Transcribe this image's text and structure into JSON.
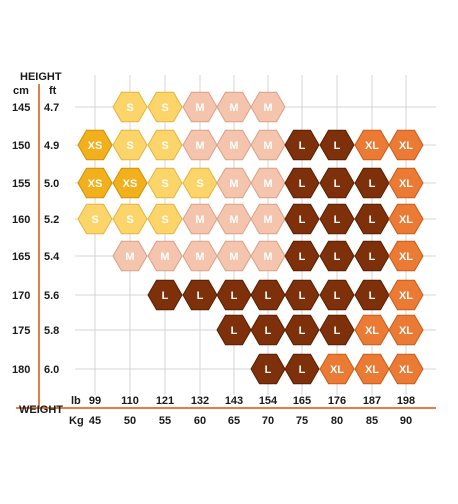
{
  "chart_data": {
    "type": "table",
    "title": "",
    "y_axis": {
      "title": "HEIGHT",
      "unit_cm": "cm",
      "unit_ft": "ft",
      "cm": [
        "145",
        "150",
        "155",
        "160",
        "165",
        "170",
        "175",
        "180"
      ],
      "ft": [
        "4.7",
        "4.9",
        "5.0",
        "5.2",
        "5.4",
        "5.6",
        "5.8",
        "6.0"
      ]
    },
    "x_axis": {
      "title": "WEIGHT",
      "unit_lb": "lb",
      "unit_kg": "Kg",
      "lb": [
        "99",
        "110",
        "121",
        "132",
        "143",
        "154",
        "165",
        "176",
        "187",
        "198"
      ],
      "kg": [
        "45",
        "50",
        "55",
        "60",
        "65",
        "70",
        "75",
        "80",
        "85",
        "90"
      ]
    },
    "grid": true,
    "cells": [
      [
        "",
        "S",
        "S",
        "M",
        "M",
        "M",
        "",
        "",
        "",
        ""
      ],
      [
        "XS",
        "S",
        "S",
        "M",
        "M",
        "M",
        "L",
        "L",
        "XL",
        "XL"
      ],
      [
        "XS",
        "XS",
        "S",
        "S",
        "M",
        "M",
        "L",
        "L",
        "L",
        "XL"
      ],
      [
        "S",
        "S",
        "S",
        "M",
        "M",
        "M",
        "L",
        "L",
        "L",
        "XL"
      ],
      [
        "",
        "M",
        "M",
        "M",
        "M",
        "M",
        "L",
        "L",
        "L",
        "XL"
      ],
      [
        "",
        "",
        "L",
        "L",
        "L",
        "L",
        "L",
        "L",
        "L",
        "XL"
      ],
      [
        "",
        "",
        "",
        "",
        "L",
        "L",
        "L",
        "L",
        "XL",
        "XL"
      ],
      [
        "",
        "",
        "",
        "",
        "",
        "L",
        "L",
        "XL",
        "XL",
        "XL"
      ]
    ],
    "size_colors": {
      "XS": "#f2b01c",
      "S": "#fbd46a",
      "M": "#f4c4ad",
      "L": "#7d300a",
      "XL": "#ea7a34"
    },
    "size_stroke_colors": {
      "XS": "#d08f00",
      "S": "#e4b440",
      "M": "#d9a088",
      "L": "#5a1f03",
      "XL": "#c75c1a"
    },
    "axis_color": "#e07f43",
    "grid_color": "#d4d4d4"
  }
}
